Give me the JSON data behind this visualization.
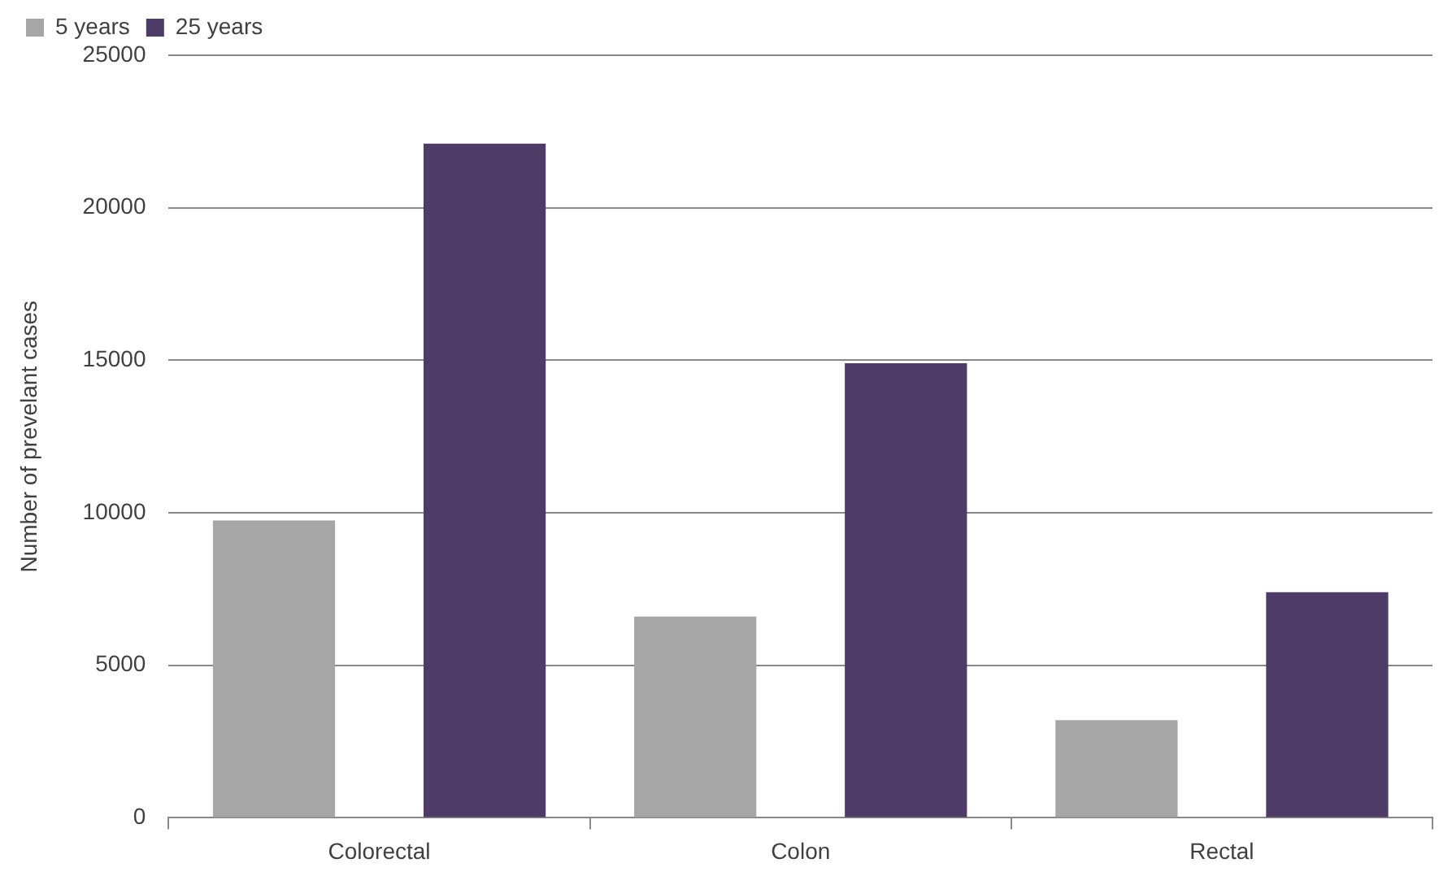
{
  "chart_data": {
    "type": "bar",
    "ylabel": "Number of prevelant cases",
    "categories": [
      "Colorectal",
      "Colon",
      "Rectal"
    ],
    "series": [
      {
        "name": "5 years",
        "color": "#a6a6a6",
        "values": [
          9750,
          6600,
          3200
        ]
      },
      {
        "name": "25 years",
        "color": "#4f3b67",
        "values": [
          22100,
          14900,
          7400
        ]
      }
    ],
    "ylim": [
      0,
      25000
    ],
    "yticks": [
      0,
      5000,
      10000,
      15000,
      20000,
      25000
    ],
    "grid": "y",
    "legend": "top left"
  }
}
